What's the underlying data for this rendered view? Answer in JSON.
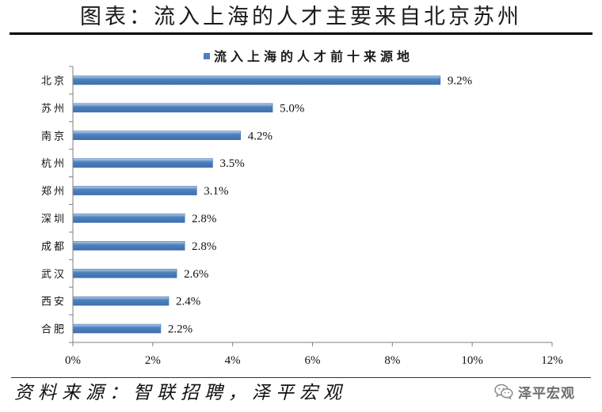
{
  "title": "图表：流入上海的人才主要来自北京苏州",
  "source": "资料来源：智联招聘，泽平宏观",
  "watermark": {
    "text": "泽平宏观",
    "icon": "wechat-icon"
  },
  "chart_data": {
    "type": "bar",
    "orientation": "horizontal",
    "categories": [
      "北京",
      "苏州",
      "南京",
      "杭州",
      "郑州",
      "深圳",
      "成都",
      "武汉",
      "西安",
      "合肥"
    ],
    "series": [
      {
        "name": "流入上海的人才前十来源地",
        "values": [
          9.2,
          5.0,
          4.2,
          3.5,
          3.1,
          2.8,
          2.8,
          2.6,
          2.4,
          2.2
        ]
      }
    ],
    "data_labels": [
      "9.2%",
      "5.0%",
      "4.2%",
      "3.5%",
      "3.1%",
      "2.8%",
      "2.8%",
      "2.6%",
      "2.4%",
      "2.2%"
    ],
    "xlim": [
      0,
      12
    ],
    "x_tick_values": [
      0,
      2,
      4,
      6,
      8,
      10,
      12
    ],
    "x_tick_labels": [
      "0%",
      "2%",
      "4%",
      "6%",
      "8%",
      "10%",
      "12%"
    ],
    "grid": false,
    "legend": "top-center",
    "colors": {
      "bar": "#4f81bd",
      "bar_light": "#b9d0ee",
      "bar_dark": "#3e6fb0",
      "axis": "#808080"
    }
  }
}
